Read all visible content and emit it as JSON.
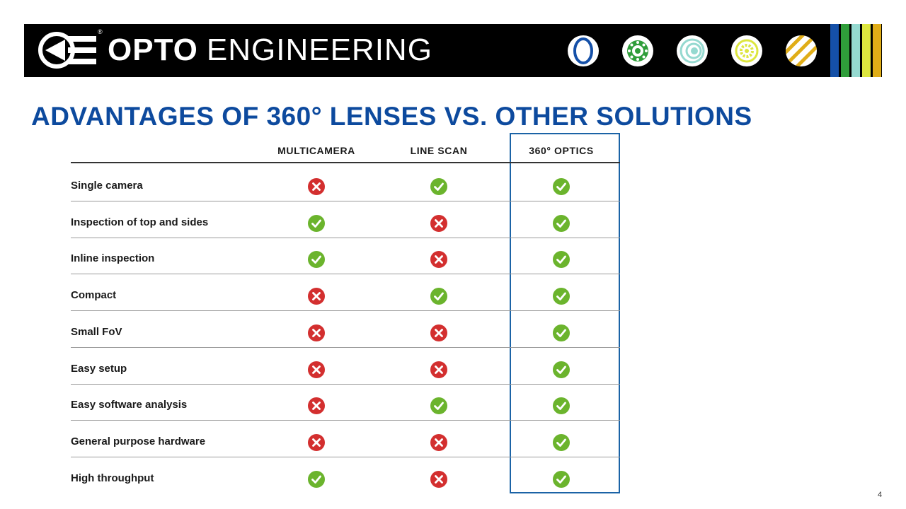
{
  "header": {
    "brand_bold": "OPTO",
    "brand_light": "ENGINEERING",
    "registered_mark": "®",
    "tile_colors": [
      "#1550a8",
      "#2f9e3a",
      "#95d9d0",
      "#dde63f",
      "#e0ad17"
    ],
    "stripe_colors": [
      "#1550a8",
      "#000000",
      "#2f9e3a",
      "#000000",
      "#95d9d0",
      "#000000",
      "#dde63f",
      "#000000",
      "#e0ad17"
    ]
  },
  "slide": {
    "title": "ADVANTAGES OF 360° LENSES VS. OTHER SOLUTIONS",
    "page_number": "4"
  },
  "table": {
    "columns": [
      "MULTICAMERA",
      "LINE SCAN",
      "360° OPTICS"
    ],
    "highlighted_column": "360° OPTICS",
    "rows": [
      {
        "label": "Single camera",
        "values": [
          "no",
          "yes",
          "yes"
        ]
      },
      {
        "label": "Inspection of top and sides",
        "values": [
          "yes",
          "no",
          "yes"
        ]
      },
      {
        "label": "Inline inspection",
        "values": [
          "yes",
          "no",
          "yes"
        ]
      },
      {
        "label": "Compact",
        "values": [
          "no",
          "yes",
          "yes"
        ]
      },
      {
        "label": "Small FoV",
        "values": [
          "no",
          "no",
          "yes"
        ]
      },
      {
        "label": "Easy setup",
        "values": [
          "no",
          "no",
          "yes"
        ]
      },
      {
        "label": "Easy software analysis",
        "values": [
          "no",
          "yes",
          "yes"
        ]
      },
      {
        "label": "General purpose hardware",
        "values": [
          "no",
          "no",
          "yes"
        ]
      },
      {
        "label": "High throughput",
        "values": [
          "yes",
          "no",
          "yes"
        ]
      }
    ]
  },
  "icons": {
    "yes": "check-circle-icon",
    "no": "cross-circle-icon",
    "yes_color": "#6bb42d",
    "no_color": "#d32f2f"
  }
}
